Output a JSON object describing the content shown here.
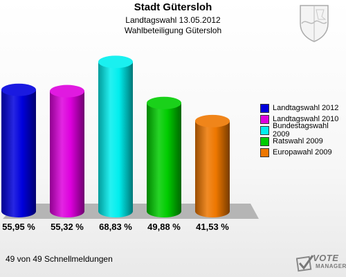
{
  "header": {
    "title": "Stadt Gütersloh",
    "subtitle1": "Landtagswahl 13.05.2012",
    "subtitle2": "Wahlbeteiligung Gütersloh"
  },
  "footer": {
    "status_text": "49 von 49 Schnellmeldungen",
    "logo_line1": "VOTE",
    "logo_line2": "MANAGER"
  },
  "chart_data": {
    "type": "bar",
    "title": "Wahlbeteiligung Gütersloh",
    "categories": [
      "Landtagswahl 2012",
      "Landtagswahl 2010",
      "Bundestagswahl 2009",
      "Ratswahl 2009",
      "Europawahl 2009"
    ],
    "values": [
      55.95,
      55.32,
      68.83,
      49.88,
      41.53
    ],
    "labels": [
      "55,95 %",
      "55,32 %",
      "68,83 %",
      "49,88 %",
      "41,53 %"
    ],
    "colors": [
      "#0000dd",
      "#dd00dd",
      "#00eeee",
      "#00cc00",
      "#ee7700"
    ],
    "ylim": [
      0,
      75
    ],
    "grid": false,
    "legend_position": "right"
  }
}
